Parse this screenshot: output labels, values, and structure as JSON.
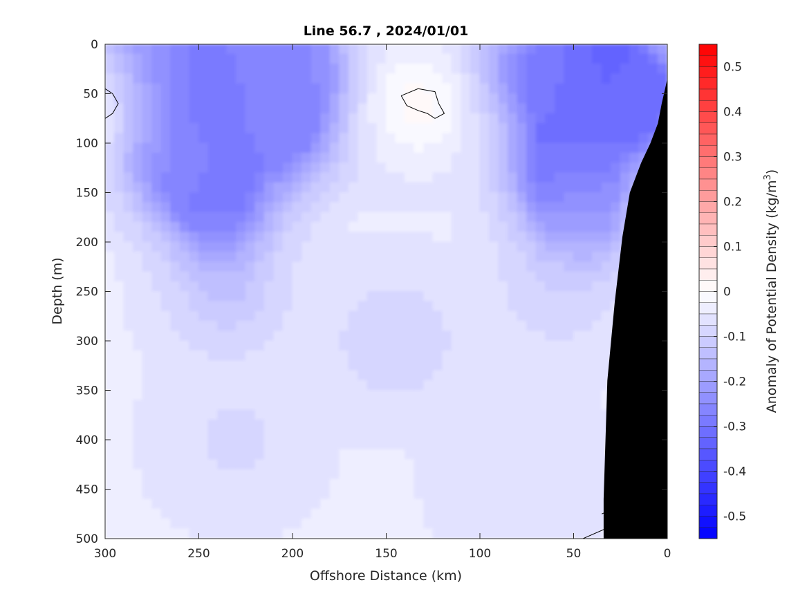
{
  "chart_data": {
    "type": "heatmap",
    "title": "Line 56.7 , 2024/01/01",
    "xlabel": "Offshore Distance (km)",
    "ylabel": "Depth (m)",
    "colorbar_label": "Anomaly of Potential Density (kg/m",
    "colorbar_label_sup": "3",
    "colorbar_label_close": ")",
    "xlim": [
      300,
      0
    ],
    "x_reversed": true,
    "ylim": [
      0,
      500
    ],
    "y_reversed": true,
    "clim": [
      -0.55,
      0.55
    ],
    "x_ticks": [
      300,
      250,
      200,
      150,
      100,
      50,
      0
    ],
    "x_tick_labels": [
      "300",
      "250",
      "200",
      "150",
      "100",
      "50",
      "0"
    ],
    "y_ticks": [
      0,
      50,
      100,
      150,
      200,
      250,
      300,
      350,
      400,
      450,
      500
    ],
    "y_tick_labels": [
      "0",
      "50",
      "100",
      "150",
      "200",
      "250",
      "300",
      "350",
      "400",
      "450",
      "500"
    ],
    "colorbar_ticks": [
      0.5,
      0.4,
      0.3,
      0.2,
      0.1,
      0,
      -0.1,
      -0.2,
      -0.3,
      -0.4,
      -0.5
    ],
    "colorbar_tick_labels": [
      "0.5",
      "0.4",
      "0.3",
      "0.2",
      "0.1",
      "0",
      "-0.1",
      "-0.2",
      "-0.3",
      "-0.4",
      "-0.5"
    ],
    "colormap": {
      "negative": "#0000ff",
      "zero": "#ffffff",
      "positive": "#ff0000"
    },
    "land_color": "#000000",
    "field_hotspots": [
      {
        "x": 255,
        "depth": 50,
        "value": -0.33
      },
      {
        "x": 240,
        "depth": 160,
        "value": -0.3
      },
      {
        "x": 215,
        "depth": 20,
        "value": -0.27
      },
      {
        "x": 275,
        "depth": 20,
        "value": -0.24
      },
      {
        "x": 205,
        "depth": 90,
        "value": -0.27
      },
      {
        "x": 265,
        "depth": 110,
        "value": -0.24
      },
      {
        "x": 200,
        "depth": 20,
        "value": -0.24
      },
      {
        "x": 55,
        "depth": 120,
        "value": -0.32
      },
      {
        "x": 30,
        "depth": 40,
        "value": -0.36
      },
      {
        "x": 70,
        "depth": 25,
        "value": -0.27
      },
      {
        "x": 15,
        "depth": 60,
        "value": -0.28
      },
      {
        "x": 45,
        "depth": 170,
        "value": -0.2
      },
      {
        "x": 300,
        "depth": 60,
        "value": 0.03
      },
      {
        "x": 133,
        "depth": 60,
        "value": 0.01
      },
      {
        "x": 235,
        "depth": 250,
        "value": -0.12
      },
      {
        "x": 60,
        "depth": 250,
        "value": -0.09
      },
      {
        "x": 145,
        "depth": 300,
        "value": -0.1
      },
      {
        "x": 80,
        "depth": 430,
        "value": -0.07
      },
      {
        "x": 230,
        "depth": 400,
        "value": -0.08
      }
    ],
    "zero_contours": [
      [
        [
          300,
          45
        ],
        [
          296,
          50
        ],
        [
          293,
          60
        ],
        [
          296,
          70
        ],
        [
          300,
          75
        ]
      ],
      [
        [
          142,
          52
        ],
        [
          133,
          45
        ],
        [
          124,
          48
        ],
        [
          122,
          60
        ],
        [
          119,
          70
        ],
        [
          124,
          75
        ],
        [
          128,
          70
        ],
        [
          133,
          67
        ],
        [
          139,
          62
        ],
        [
          142,
          52
        ]
      ],
      [
        [
          33,
          440
        ],
        [
          31,
          445
        ],
        [
          33,
          450
        ]
      ],
      [
        [
          35,
          475
        ],
        [
          29,
          470
        ],
        [
          33,
          490
        ],
        [
          45,
          500
        ]
      ]
    ],
    "bathymetry_outline": [
      [
        0,
        35
      ],
      [
        3,
        60
      ],
      [
        5,
        80
      ],
      [
        9,
        100
      ],
      [
        14,
        120
      ],
      [
        20,
        150
      ],
      [
        24,
        195
      ],
      [
        28,
        260
      ],
      [
        30,
        300
      ],
      [
        32,
        340
      ],
      [
        33,
        400
      ],
      [
        34,
        460
      ],
      [
        34,
        500
      ]
    ]
  }
}
